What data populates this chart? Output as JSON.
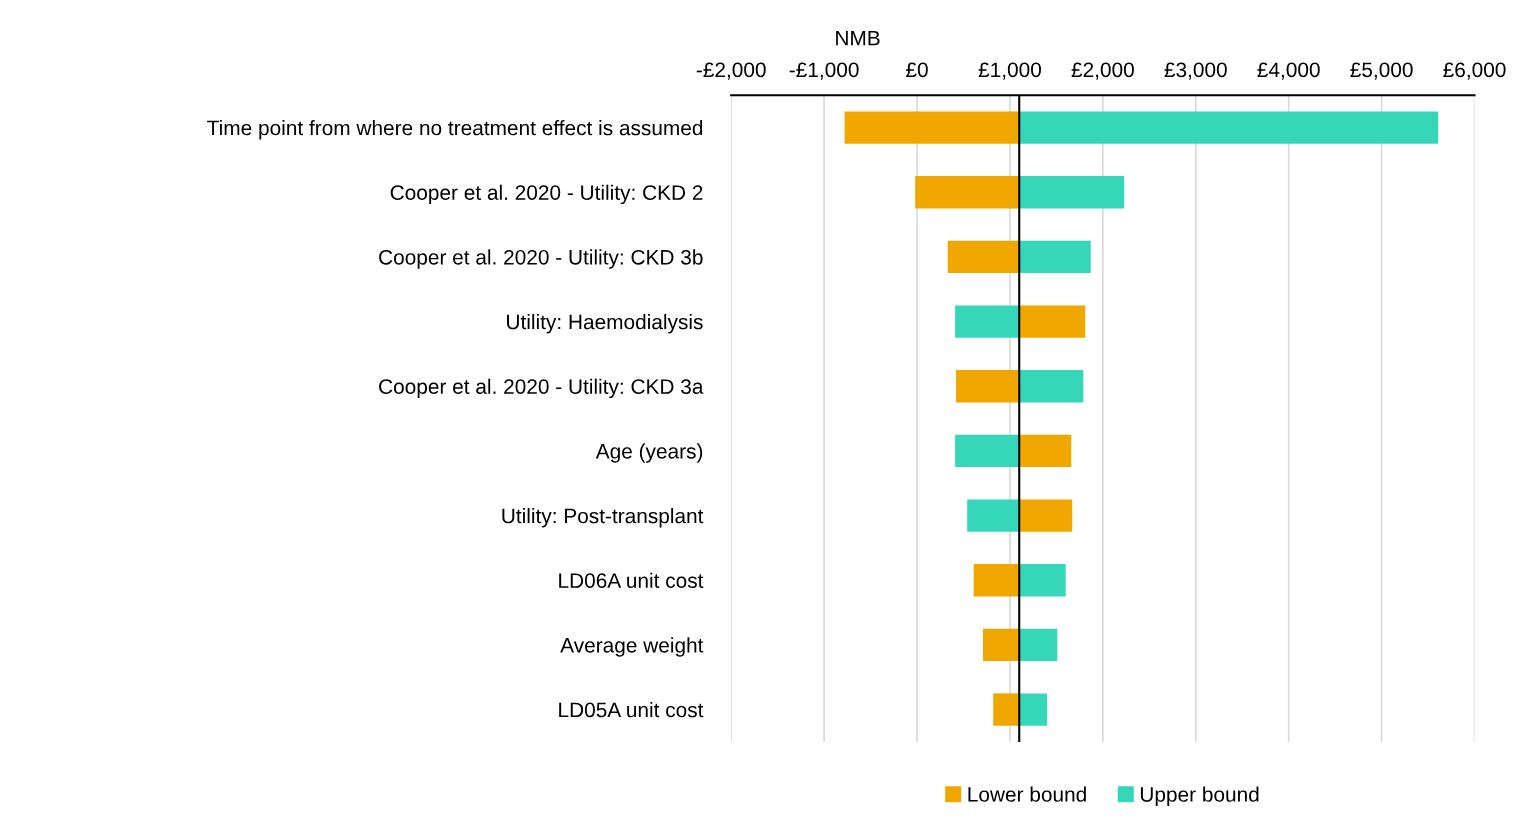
{
  "chart_data": {
    "type": "bar",
    "orientation": "horizontal",
    "xlabel": "NMB",
    "categories": [
      "Time point from where no treatment effect is assumed",
      "Cooper et al. 2020 - Utility: CKD 2",
      "Cooper et al. 2020 - Utility: CKD 3b",
      "Utility: Haemodialysis",
      "Cooper et al. 2020 - Utility: CKD 3a",
      "Age (years)",
      "Utility: Post-transplant",
      "LD06A unit cost",
      "Average weight",
      "LD05A unit cost"
    ],
    "series": [
      {
        "name": "Lower bound",
        "color": "#f0a800",
        "base": [
          1100,
          1100,
          1100,
          1100,
          1100,
          1100,
          1100,
          1100,
          1100,
          1100
        ],
        "values": [
          -1880,
          -1120,
          -770,
          710,
          -680,
          560,
          570,
          -490,
          -390,
          -280
        ]
      },
      {
        "name": "Upper bound",
        "color": "#36d6b8",
        "base": [
          1100,
          1100,
          1100,
          1100,
          1100,
          1100,
          1100,
          1100,
          1100,
          1100
        ],
        "values": [
          4510,
          1130,
          770,
          -690,
          690,
          -690,
          -560,
          500,
          410,
          300
        ]
      }
    ],
    "xlim": [
      -2000,
      6000
    ],
    "xticks": [
      {
        "value": -2000,
        "label": "-£2,000"
      },
      {
        "value": -1000,
        "label": "-£1,000"
      },
      {
        "value": 0,
        "label": "£0"
      },
      {
        "value": 1000,
        "label": "£1,000"
      },
      {
        "value": 2000,
        "label": "£2,000"
      },
      {
        "value": 3000,
        "label": "£3,000"
      },
      {
        "value": 4000,
        "label": "£4,000"
      },
      {
        "value": 5000,
        "label": "£5,000"
      },
      {
        "value": 6000,
        "label": "£6,000"
      }
    ],
    "ref_lines": [
      {
        "axis": "x",
        "value": 1100,
        "color": "#000000"
      }
    ],
    "grid": "x",
    "legend": "bottom"
  }
}
